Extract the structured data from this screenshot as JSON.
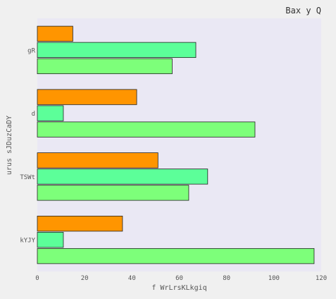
{
  "chart_data": {
    "type": "bar",
    "orientation": "horizontal",
    "title": "Bax y Q",
    "xlabel": "f WrLrsKLkgiq",
    "ylabel": "urus sJDuzCaDY",
    "categories": [
      "gR",
      "d",
      "TSWt",
      "kYJY"
    ],
    "series": [
      {
        "color": "#ff9500",
        "values": [
          15,
          42,
          51,
          36
        ]
      },
      {
        "color": "#5cff99",
        "values": [
          67,
          11,
          72,
          11
        ]
      },
      {
        "color": "#7dff7a",
        "values": [
          57,
          92,
          64,
          117
        ]
      }
    ],
    "xlim": [
      0,
      120
    ],
    "xticks": [
      "0",
      "20",
      "40",
      "60",
      "80",
      "100",
      "120"
    ],
    "grid": false,
    "background": "#eae8f4"
  }
}
